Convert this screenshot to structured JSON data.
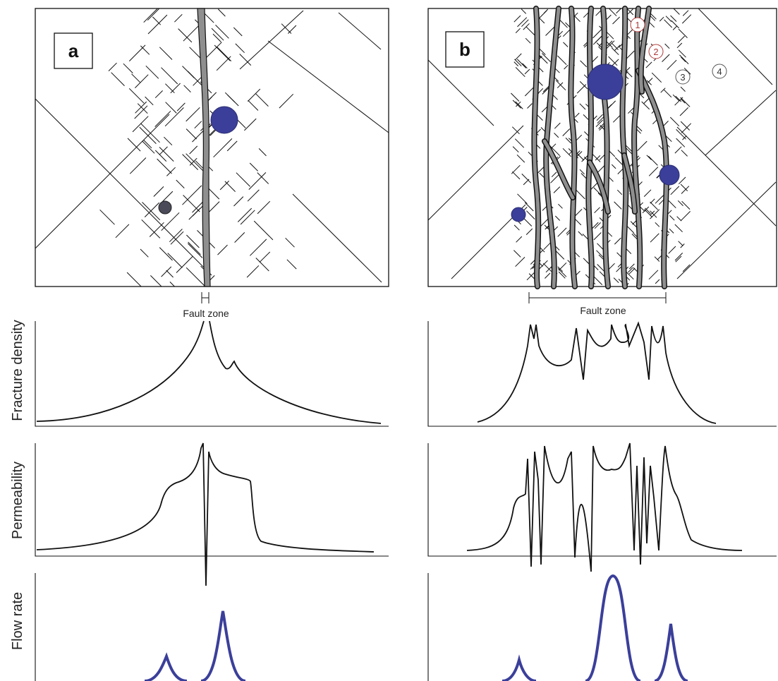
{
  "panels": {
    "a": {
      "letter": "a",
      "fault_zone_label": "Fault zone"
    },
    "b": {
      "letter": "b",
      "fault_zone_label": "Fault zone",
      "zone_numbers": [
        "1",
        "2",
        "3",
        "4"
      ]
    }
  },
  "axes": {
    "fracture_density": "Fracture density",
    "permeability": "Permeability",
    "flow_rate": "Flow rate"
  },
  "colors": {
    "fault_core": "#8f8f8f",
    "fluid_blue": "#3b3f9a",
    "small_dot_a": "#4a4a58",
    "line": "#111111",
    "numbers_b": "#b03a3a"
  }
}
